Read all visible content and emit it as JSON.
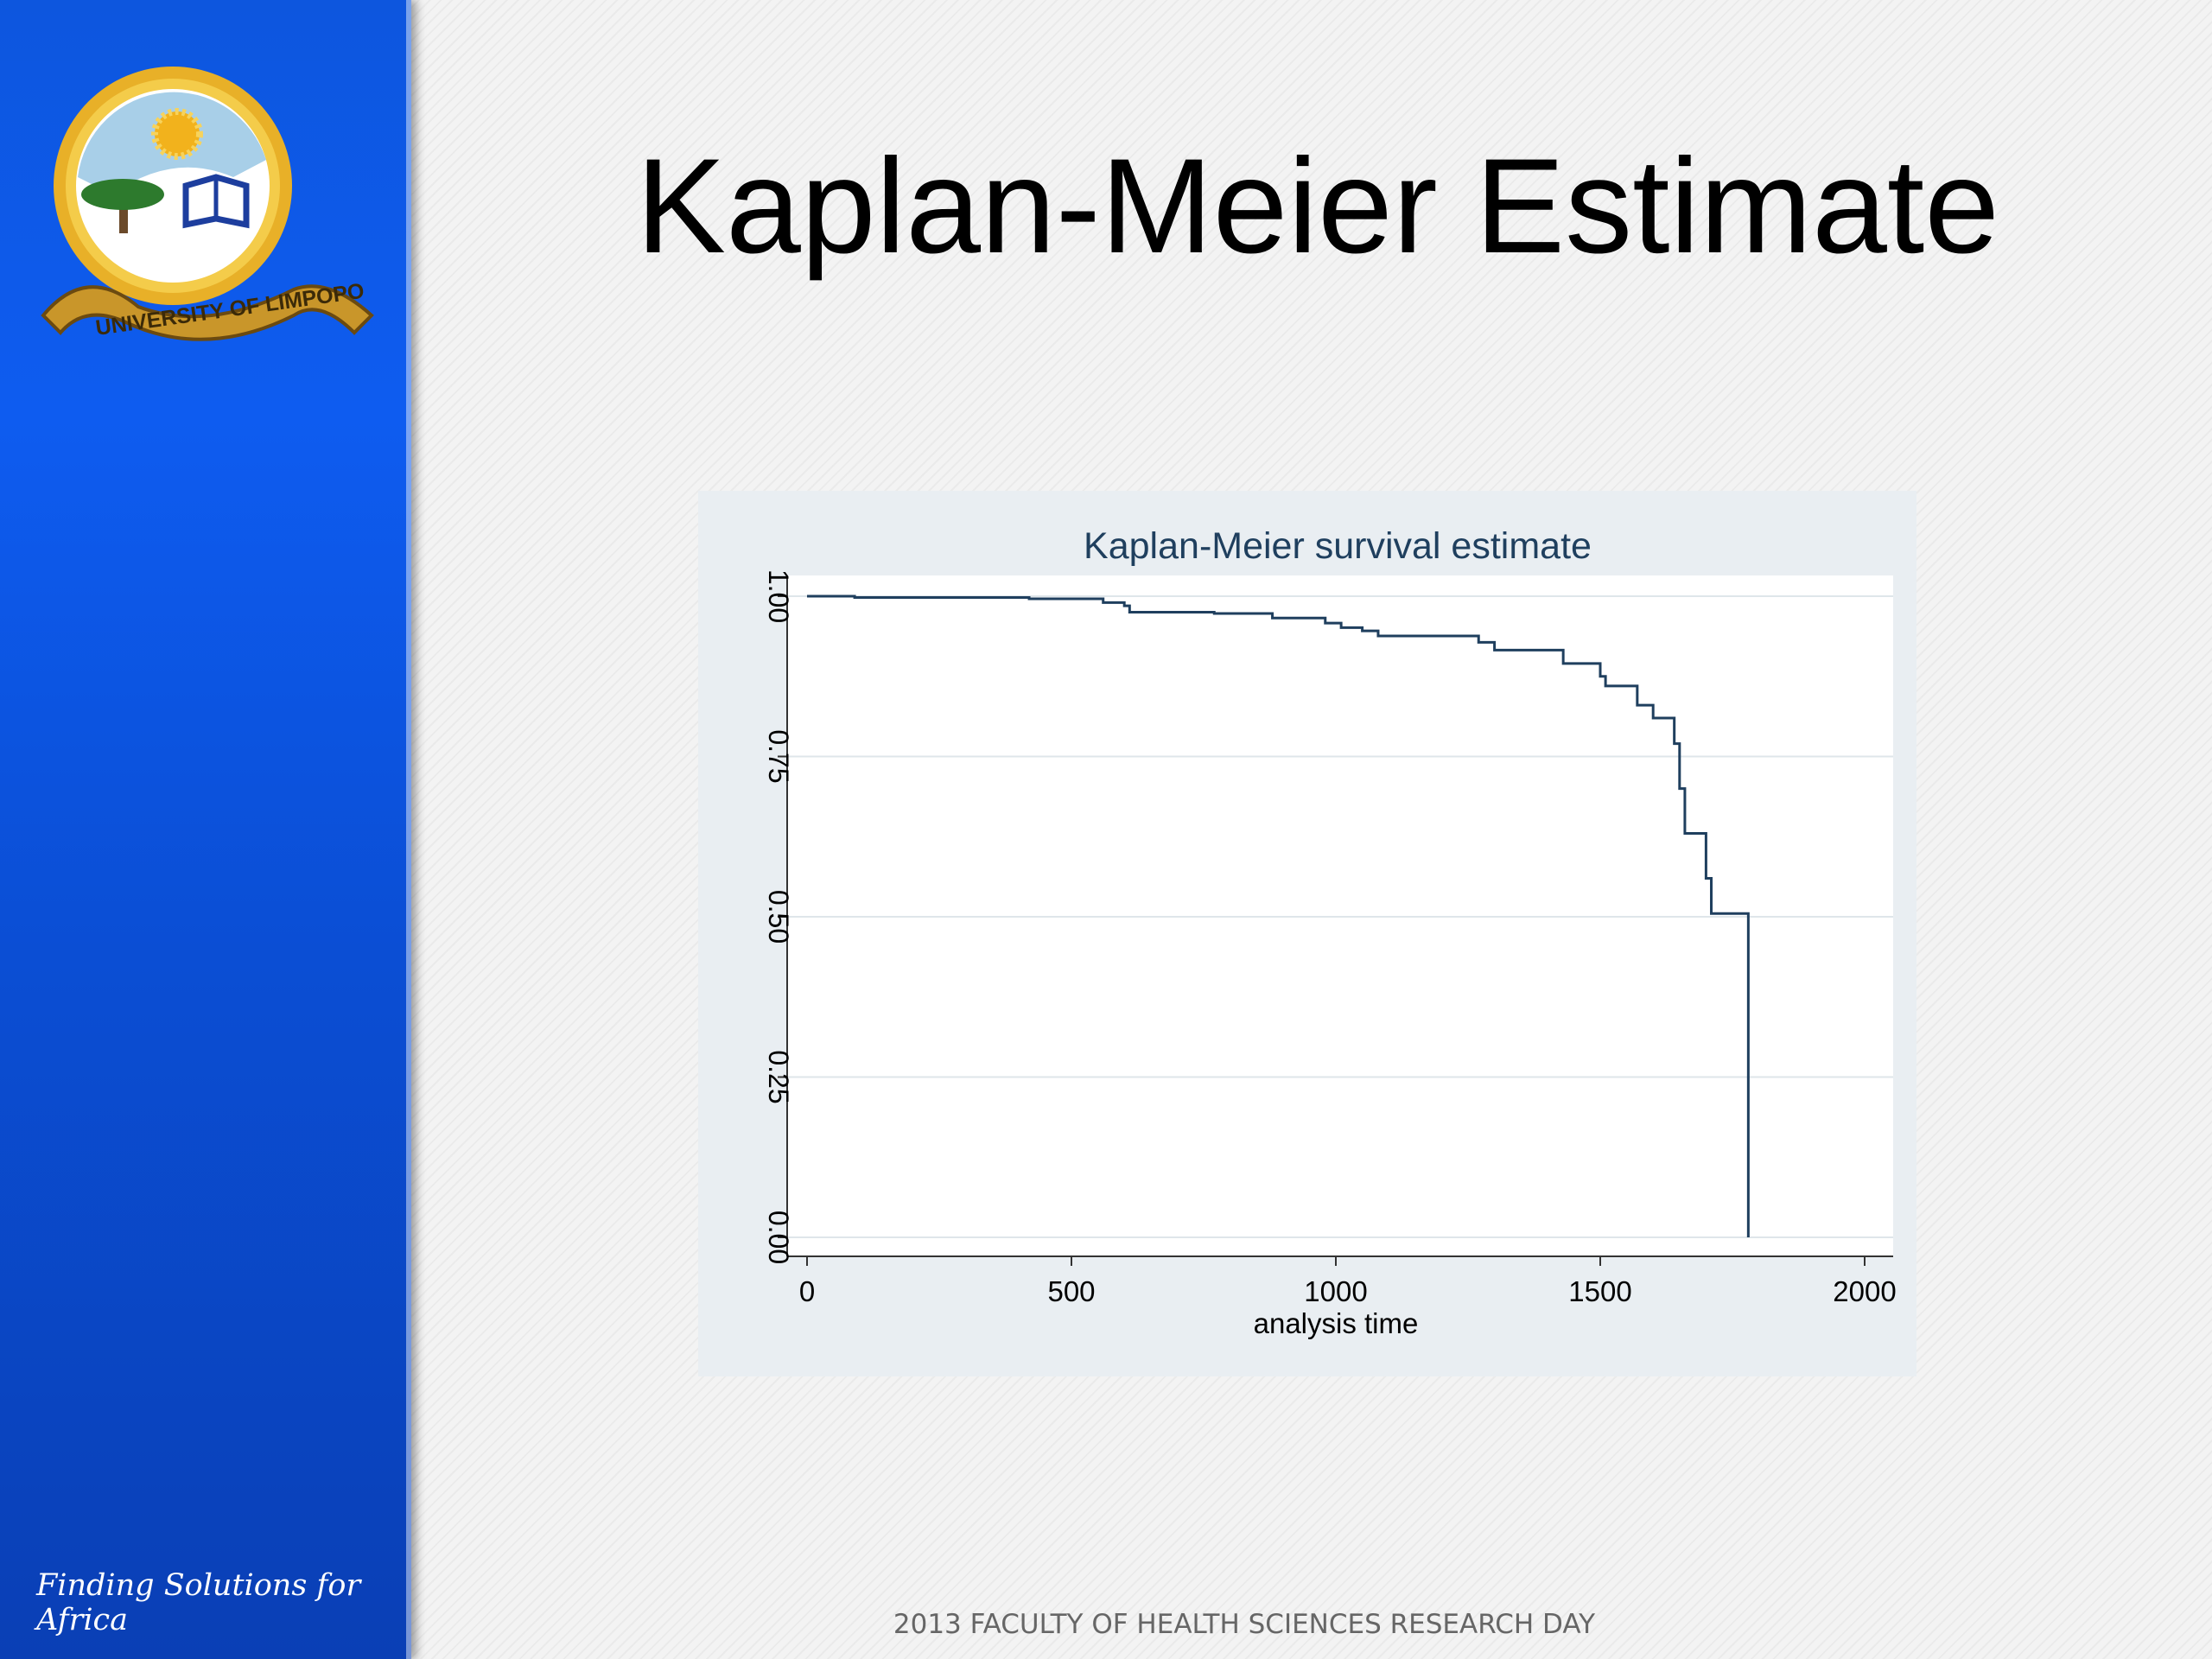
{
  "slide": {
    "title": "Kaplan-Meier Estimate",
    "tagline": "Finding Solutions for Africa",
    "footer": "2013 FACULTY OF HEALTH SCIENCES RESEARCH DAY",
    "logo_text": "UNIVERSITY OF LIMPOPO"
  },
  "colors": {
    "sidebar": "#0e5cf0",
    "chart_frame": "#e9eef2",
    "curve": "#1f3f5e"
  },
  "chart_data": {
    "type": "line",
    "title": "Kaplan-Meier survival estimate",
    "xlabel": "analysis time",
    "ylabel": "",
    "xlim": [
      0,
      2000
    ],
    "ylim": [
      0,
      1
    ],
    "xticks": [
      "0",
      "500",
      "1000",
      "1500",
      "2000"
    ],
    "yticks": [
      "0.00",
      "0.25",
      "0.50",
      "0.75",
      "1.00"
    ],
    "grid": true,
    "step": true,
    "series": [
      {
        "x": [
          0,
          90,
          420,
          560,
          600,
          610,
          770,
          880,
          980,
          1010,
          1050,
          1080,
          1270,
          1300,
          1430,
          1500,
          1510,
          1570,
          1600,
          1640,
          1650,
          1660,
          1700,
          1710,
          1780,
          1780
        ],
        "y": [
          1.0,
          0.998,
          0.996,
          0.99,
          0.985,
          0.975,
          0.973,
          0.966,
          0.958,
          0.951,
          0.946,
          0.938,
          0.928,
          0.916,
          0.895,
          0.875,
          0.86,
          0.83,
          0.81,
          0.77,
          0.7,
          0.63,
          0.56,
          0.505,
          0.505,
          0.0
        ]
      }
    ]
  }
}
